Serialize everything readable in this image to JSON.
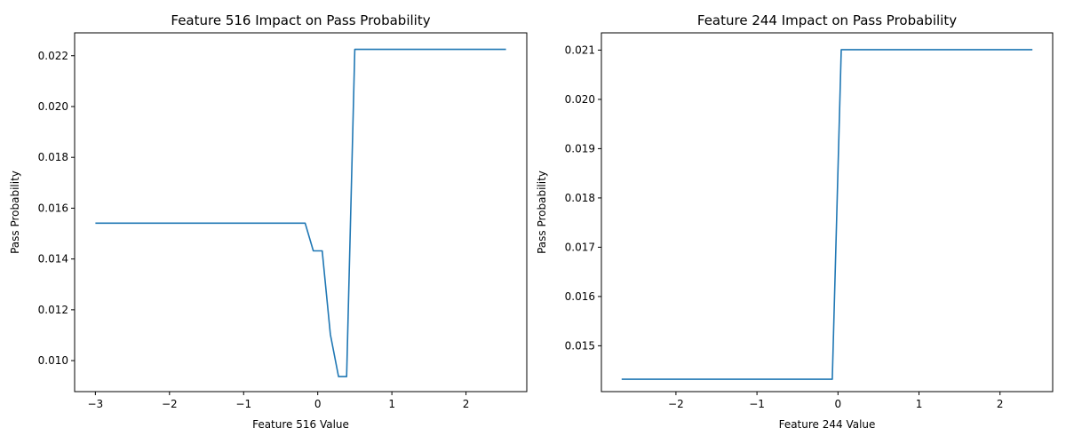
{
  "chart_data": [
    {
      "type": "line",
      "title": "Feature 516 Impact on Pass Probability",
      "xlabel": "Feature 516 Value",
      "ylabel": "Pass Probability",
      "xlim": [
        -3.28,
        2.82
      ],
      "ylim": [
        0.00878,
        0.0229
      ],
      "xticks": [
        -3,
        -2,
        -1,
        0,
        1,
        2
      ],
      "xtick_labels": [
        "−3",
        "−2",
        "−1",
        "0",
        "1",
        "2"
      ],
      "yticks": [
        0.01,
        0.012,
        0.014,
        0.016,
        0.018,
        0.02,
        0.022
      ],
      "ytick_labels": [
        "0.010",
        "0.012",
        "0.014",
        "0.016",
        "0.018",
        "0.020",
        "0.022"
      ],
      "grid": false,
      "color": "#1f77b4",
      "x": [
        -3.0,
        -0.17,
        -0.06,
        0.06,
        0.17,
        0.28,
        0.39,
        0.5,
        2.54
      ],
      "y": [
        0.01541,
        0.01541,
        0.01432,
        0.01432,
        0.01103,
        0.00937,
        0.00937,
        0.02225,
        0.02225
      ]
    },
    {
      "type": "line",
      "title": "Feature 244 Impact on Pass Probability",
      "xlabel": "Feature 244 Value",
      "ylabel": "Pass Probability",
      "xlim": [
        -2.92,
        2.65
      ],
      "ylim": [
        0.01407,
        0.02135
      ],
      "xticks": [
        -2,
        -1,
        0,
        1,
        2
      ],
      "xtick_labels": [
        "−2",
        "−1",
        "0",
        "1",
        "2"
      ],
      "yticks": [
        0.015,
        0.016,
        0.017,
        0.018,
        0.019,
        0.02,
        0.021
      ],
      "ytick_labels": [
        "0.015",
        "0.016",
        "0.017",
        "0.018",
        "0.019",
        "0.020",
        "0.021"
      ],
      "grid": false,
      "color": "#1f77b4",
      "x": [
        -2.67,
        -0.07,
        0.04,
        2.4
      ],
      "y": [
        0.01432,
        0.01432,
        0.02101,
        0.02101
      ]
    }
  ]
}
